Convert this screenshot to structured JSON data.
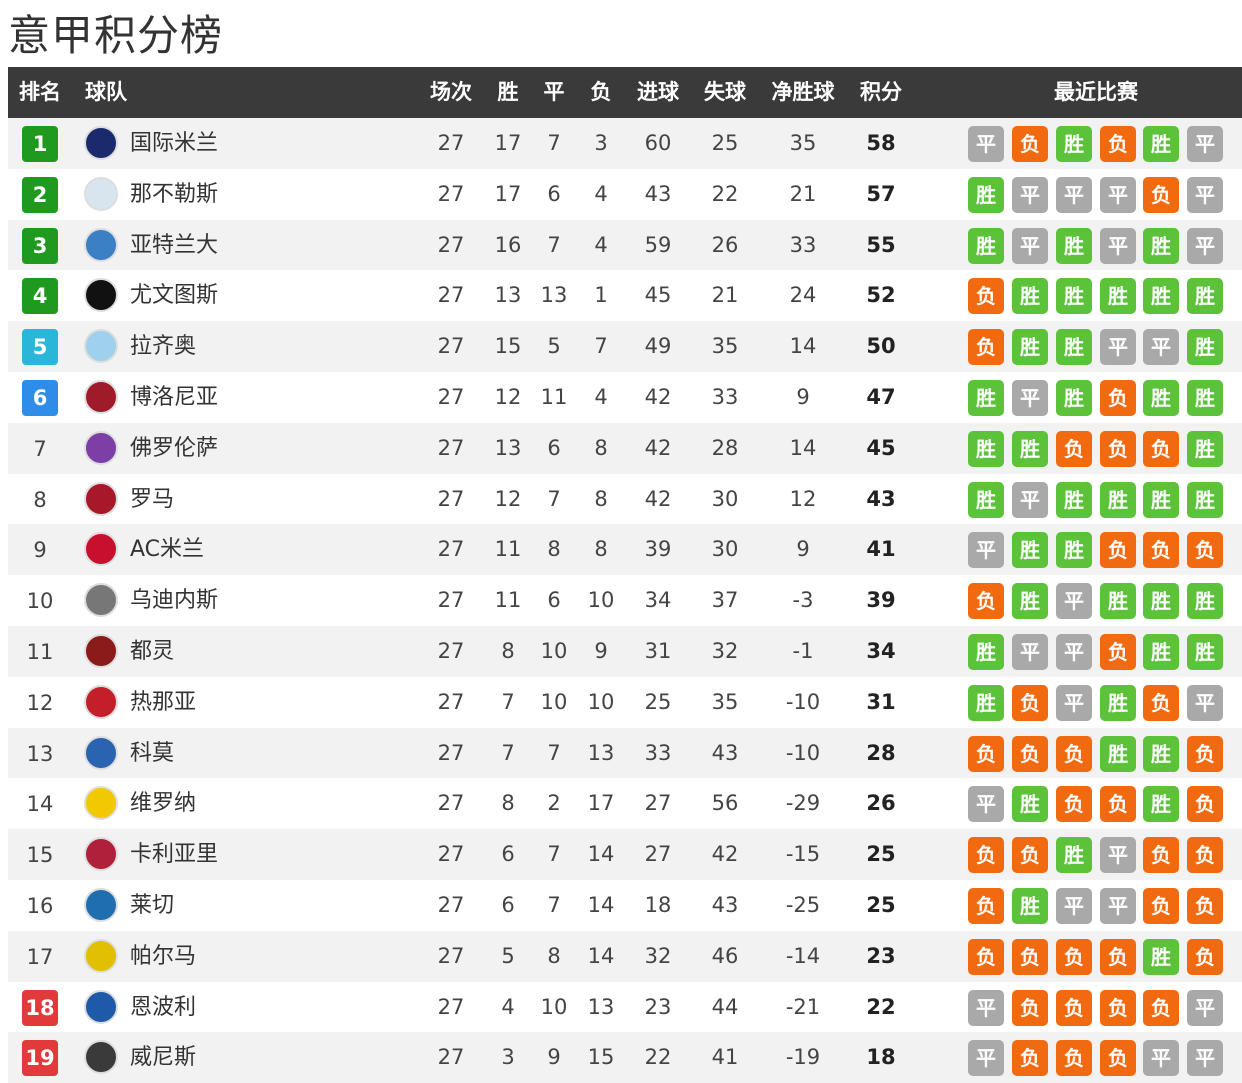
{
  "title": "意甲积分榜",
  "headers": {
    "rank": "排名",
    "team": "球队",
    "played": "场次",
    "won": "胜",
    "drawn": "平",
    "lost": "负",
    "gf": "进球",
    "ga": "失球",
    "gd": "净胜球",
    "pts": "积分",
    "form": "最近比赛"
  },
  "colors": {
    "cl": "#1f9a1f",
    "el": "#29b6d8",
    "ecl": "#2f8ce8",
    "rel": "#e23a3a",
    "win": "#5cc23a",
    "draw": "#a9a9a9",
    "loss": "#f26a10"
  },
  "rows": [
    {
      "rank": "1",
      "zone": "cl",
      "team": "国际米兰",
      "logo": "#1a2a6c",
      "p": "27",
      "w": "17",
      "d": "7",
      "l": "3",
      "gf": "60",
      "ga": "25",
      "gd": "35",
      "pts": "58",
      "form": [
        "平",
        "负",
        "胜",
        "负",
        "胜",
        "平"
      ]
    },
    {
      "rank": "2",
      "zone": "cl",
      "team": "那不勒斯",
      "logo": "#d8e4ee",
      "p": "27",
      "w": "17",
      "d": "6",
      "l": "4",
      "gf": "43",
      "ga": "22",
      "gd": "21",
      "pts": "57",
      "form": [
        "胜",
        "平",
        "平",
        "平",
        "负",
        "平"
      ]
    },
    {
      "rank": "3",
      "zone": "cl",
      "team": "亚特兰大",
      "logo": "#3b7fc4",
      "p": "27",
      "w": "16",
      "d": "7",
      "l": "4",
      "gf": "59",
      "ga": "26",
      "gd": "33",
      "pts": "55",
      "form": [
        "胜",
        "平",
        "胜",
        "平",
        "胜",
        "平"
      ]
    },
    {
      "rank": "4",
      "zone": "cl",
      "team": "尤文图斯",
      "logo": "#111111",
      "p": "27",
      "w": "13",
      "d": "13",
      "l": "1",
      "gf": "45",
      "ga": "21",
      "gd": "24",
      "pts": "52",
      "form": [
        "负",
        "胜",
        "胜",
        "胜",
        "胜",
        "胜"
      ]
    },
    {
      "rank": "5",
      "zone": "el",
      "team": "拉齐奥",
      "logo": "#9fd0ee",
      "p": "27",
      "w": "15",
      "d": "5",
      "l": "7",
      "gf": "49",
      "ga": "35",
      "gd": "14",
      "pts": "50",
      "form": [
        "负",
        "胜",
        "胜",
        "平",
        "平",
        "胜"
      ]
    },
    {
      "rank": "6",
      "zone": "ecl",
      "team": "博洛尼亚",
      "logo": "#a01b2a",
      "p": "27",
      "w": "12",
      "d": "11",
      "l": "4",
      "gf": "42",
      "ga": "33",
      "gd": "9",
      "pts": "47",
      "form": [
        "胜",
        "平",
        "胜",
        "负",
        "胜",
        "胜"
      ]
    },
    {
      "rank": "7",
      "zone": "",
      "team": "佛罗伦萨",
      "logo": "#7b3fa6",
      "p": "27",
      "w": "13",
      "d": "6",
      "l": "8",
      "gf": "42",
      "ga": "28",
      "gd": "14",
      "pts": "45",
      "form": [
        "胜",
        "胜",
        "负",
        "负",
        "负",
        "胜"
      ]
    },
    {
      "rank": "8",
      "zone": "",
      "team": "罗马",
      "logo": "#a8182b",
      "p": "27",
      "w": "12",
      "d": "7",
      "l": "8",
      "gf": "42",
      "ga": "30",
      "gd": "12",
      "pts": "43",
      "form": [
        "胜",
        "平",
        "胜",
        "胜",
        "胜",
        "胜"
      ]
    },
    {
      "rank": "9",
      "zone": "",
      "team": "AC米兰",
      "logo": "#c8102e",
      "p": "27",
      "w": "11",
      "d": "8",
      "l": "8",
      "gf": "39",
      "ga": "30",
      "gd": "9",
      "pts": "41",
      "form": [
        "平",
        "胜",
        "胜",
        "负",
        "负",
        "负"
      ]
    },
    {
      "rank": "10",
      "zone": "",
      "team": "乌迪内斯",
      "logo": "#777777",
      "p": "27",
      "w": "11",
      "d": "6",
      "l": "10",
      "gf": "34",
      "ga": "37",
      "gd": "-3",
      "pts": "39",
      "form": [
        "负",
        "胜",
        "平",
        "胜",
        "胜",
        "胜"
      ]
    },
    {
      "rank": "11",
      "zone": "",
      "team": "都灵",
      "logo": "#8b1a1a",
      "p": "27",
      "w": "8",
      "d": "10",
      "l": "9",
      "gf": "31",
      "ga": "32",
      "gd": "-1",
      "pts": "34",
      "form": [
        "胜",
        "平",
        "平",
        "负",
        "胜",
        "胜"
      ]
    },
    {
      "rank": "12",
      "zone": "",
      "team": "热那亚",
      "logo": "#c41e2a",
      "p": "27",
      "w": "7",
      "d": "10",
      "l": "10",
      "gf": "25",
      "ga": "35",
      "gd": "-10",
      "pts": "31",
      "form": [
        "胜",
        "负",
        "平",
        "胜",
        "负",
        "平"
      ]
    },
    {
      "rank": "13",
      "zone": "",
      "team": "科莫",
      "logo": "#2a64b0",
      "p": "27",
      "w": "7",
      "d": "7",
      "l": "13",
      "gf": "33",
      "ga": "43",
      "gd": "-10",
      "pts": "28",
      "form": [
        "负",
        "负",
        "负",
        "胜",
        "胜",
        "负"
      ]
    },
    {
      "rank": "14",
      "zone": "",
      "team": "维罗纳",
      "logo": "#f2c800",
      "p": "27",
      "w": "8",
      "d": "2",
      "l": "17",
      "gf": "27",
      "ga": "56",
      "gd": "-29",
      "pts": "26",
      "form": [
        "平",
        "胜",
        "负",
        "负",
        "胜",
        "负"
      ]
    },
    {
      "rank": "15",
      "zone": "",
      "team": "卡利亚里",
      "logo": "#b0203a",
      "p": "27",
      "w": "6",
      "d": "7",
      "l": "14",
      "gf": "27",
      "ga": "42",
      "gd": "-15",
      "pts": "25",
      "form": [
        "负",
        "负",
        "胜",
        "平",
        "负",
        "负"
      ]
    },
    {
      "rank": "16",
      "zone": "",
      "team": "莱切",
      "logo": "#1f6fb0",
      "p": "27",
      "w": "6",
      "d": "7",
      "l": "14",
      "gf": "18",
      "ga": "43",
      "gd": "-25",
      "pts": "25",
      "form": [
        "负",
        "胜",
        "平",
        "平",
        "负",
        "负"
      ]
    },
    {
      "rank": "17",
      "zone": "",
      "team": "帕尔马",
      "logo": "#e0c000",
      "p": "27",
      "w": "5",
      "d": "8",
      "l": "14",
      "gf": "32",
      "ga": "46",
      "gd": "-14",
      "pts": "23",
      "form": [
        "负",
        "负",
        "负",
        "负",
        "胜",
        "负"
      ]
    },
    {
      "rank": "18",
      "zone": "rel",
      "team": "恩波利",
      "logo": "#1e5aa8",
      "p": "27",
      "w": "4",
      "d": "10",
      "l": "13",
      "gf": "23",
      "ga": "44",
      "gd": "-21",
      "pts": "22",
      "form": [
        "平",
        "负",
        "负",
        "负",
        "负",
        "平"
      ]
    },
    {
      "rank": "19",
      "zone": "rel",
      "team": "威尼斯",
      "logo": "#3a3a3a",
      "p": "27",
      "w": "3",
      "d": "9",
      "l": "15",
      "gf": "22",
      "ga": "41",
      "gd": "-19",
      "pts": "18",
      "form": [
        "平",
        "负",
        "负",
        "负",
        "平",
        "平"
      ]
    }
  ]
}
